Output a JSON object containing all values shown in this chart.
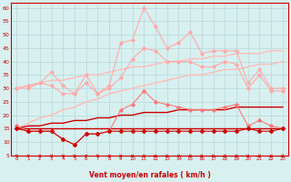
{
  "title": "",
  "xlabel": "Vent moyen/en rafales ( km/h )",
  "background_color": "#d8f0f0",
  "grid_color": "#b8d8d8",
  "xlim": [
    -0.5,
    23.5
  ],
  "ylim": [
    5,
    62
  ],
  "yticks": [
    5,
    10,
    15,
    20,
    25,
    30,
    35,
    40,
    45,
    50,
    55,
    60
  ],
  "xticks": [
    0,
    1,
    2,
    3,
    4,
    5,
    6,
    7,
    8,
    9,
    10,
    11,
    12,
    13,
    14,
    15,
    16,
    17,
    18,
    19,
    20,
    21,
    22,
    23
  ],
  "series": [
    {
      "name": "rafales_top",
      "color": "#ffaaaa",
      "linewidth": 0.8,
      "marker": "D",
      "markersize": 1.8,
      "values": [
        30,
        31,
        32,
        36,
        31,
        28,
        35,
        28,
        31,
        47,
        48,
        60,
        53,
        45,
        47,
        51,
        43,
        44,
        44,
        44,
        32,
        37,
        30,
        30
      ]
    },
    {
      "name": "rafales_mid",
      "color": "#ffaaaa",
      "linewidth": 0.8,
      "marker": "D",
      "markersize": 1.8,
      "values": [
        30,
        30,
        32,
        31,
        28,
        28,
        32,
        28,
        30,
        34,
        41,
        45,
        44,
        40,
        40,
        40,
        38,
        38,
        40,
        39,
        30,
        35,
        29,
        29
      ]
    },
    {
      "name": "trend_rafales_high",
      "color": "#ffbbbb",
      "linewidth": 1.0,
      "marker": null,
      "values": [
        30,
        31,
        32,
        33,
        33,
        34,
        35,
        35,
        36,
        37,
        38,
        38,
        39,
        40,
        40,
        41,
        41,
        42,
        42,
        43,
        43,
        43,
        44,
        44
      ]
    },
    {
      "name": "trend_rafales_low",
      "color": "#ffbbbb",
      "linewidth": 1.0,
      "marker": null,
      "values": [
        15,
        17,
        19,
        20,
        22,
        23,
        25,
        26,
        28,
        29,
        30,
        31,
        32,
        33,
        34,
        35,
        35,
        36,
        37,
        37,
        38,
        39,
        39,
        40
      ]
    },
    {
      "name": "vent_top",
      "color": "#ff7777",
      "linewidth": 0.8,
      "marker": "D",
      "markersize": 1.8,
      "values": [
        16,
        14,
        14,
        14,
        11,
        9,
        13,
        13,
        14,
        22,
        24,
        29,
        25,
        24,
        23,
        22,
        22,
        22,
        23,
        24,
        16,
        18,
        16,
        15
      ]
    },
    {
      "name": "trend_vent_high",
      "color": "#cc0000",
      "linewidth": 1.0,
      "marker": null,
      "values": [
        15,
        16,
        16,
        17,
        17,
        18,
        18,
        19,
        19,
        20,
        20,
        21,
        21,
        21,
        22,
        22,
        22,
        22,
        22,
        23,
        23,
        23,
        23,
        23
      ]
    },
    {
      "name": "trend_vent_low",
      "color": "#cc0000",
      "linewidth": 1.0,
      "marker": null,
      "values": [
        15,
        15,
        15,
        15,
        15,
        15,
        15,
        15,
        15,
        15,
        15,
        15,
        15,
        15,
        15,
        15,
        15,
        15,
        15,
        15,
        15,
        15,
        15,
        15
      ]
    },
    {
      "name": "vent_mean",
      "color": "#cc0000",
      "linewidth": 0.8,
      "marker": "P",
      "markersize": 2.5,
      "values": [
        15,
        14,
        14,
        14,
        11,
        9,
        13,
        13,
        14,
        14,
        14,
        14,
        14,
        14,
        14,
        14,
        14,
        14,
        14,
        14,
        15,
        14,
        14,
        15
      ]
    }
  ],
  "arrow_data": {
    "x": [
      0,
      1,
      2,
      3,
      4,
      5,
      6,
      7,
      8,
      9,
      10,
      11,
      12,
      13,
      14,
      15,
      16,
      17,
      18,
      19,
      20,
      21,
      22,
      23
    ],
    "angles_deg": [
      225,
      225,
      225,
      225,
      225,
      225,
      225,
      225,
      225,
      180,
      180,
      180,
      180,
      180,
      180,
      180,
      180,
      180,
      180,
      180,
      180,
      225,
      225,
      225
    ]
  }
}
